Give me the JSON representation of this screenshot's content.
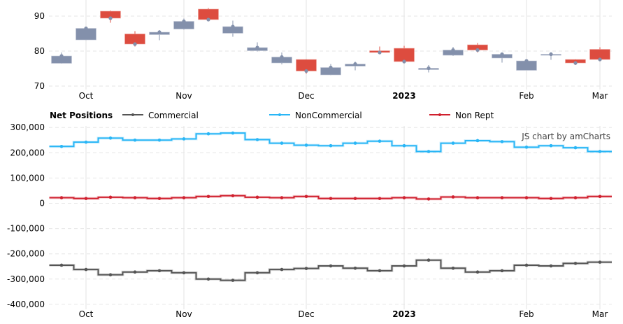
{
  "colors": {
    "up": "#8390ab",
    "down": "#dd4c3f",
    "commercial": "#555555",
    "noncommercial": "#29b6f6",
    "nonrept": "#d0202e"
  },
  "credit": "JS chart by amCharts",
  "chart_data": [
    {
      "type": "candlestick",
      "title": "",
      "ylim": [
        70,
        92
      ],
      "y_ticks": [
        "70",
        "80",
        "90"
      ],
      "y_tick_values": [
        70,
        80,
        90
      ],
      "x_labels": [
        {
          "label": "Oct",
          "week": 1,
          "bold": false
        },
        {
          "label": "Nov",
          "week": 5,
          "bold": false
        },
        {
          "label": "Dec",
          "week": 10,
          "bold": false
        },
        {
          "label": "2023",
          "week": 14,
          "bold": true
        },
        {
          "label": "Feb",
          "week": 19,
          "bold": false
        },
        {
          "label": "Mar",
          "week": 22,
          "bold": false
        }
      ],
      "ohlc": [
        [
          76.5,
          79.6,
          76.4,
          78.6
        ],
        [
          83.2,
          86.9,
          83.1,
          86.5
        ],
        [
          91.4,
          91.6,
          88.1,
          89.4
        ],
        [
          84.9,
          85.7,
          81.3,
          82.0
        ],
        [
          84.7,
          86.0,
          83.1,
          85.4
        ],
        [
          86.3,
          89.3,
          86.1,
          88.5
        ],
        [
          92.0,
          92.3,
          88.5,
          89.0
        ],
        [
          85.1,
          88.7,
          84.1,
          87.0
        ],
        [
          80.1,
          82.5,
          79.9,
          81.0
        ],
        [
          76.6,
          79.6,
          76.2,
          78.3
        ],
        [
          77.6,
          77.7,
          73.5,
          74.3
        ],
        [
          73.2,
          76.3,
          73.1,
          75.3
        ],
        [
          75.7,
          77.0,
          74.5,
          76.3
        ],
        [
          80.1,
          81.3,
          79.3,
          79.6
        ],
        [
          80.8,
          81.5,
          76.8,
          77.0
        ],
        [
          74.7,
          76.0,
          73.9,
          75.1
        ],
        [
          78.8,
          81.2,
          78.6,
          80.3
        ],
        [
          81.8,
          82.3,
          79.6,
          80.3
        ],
        [
          78.0,
          79.3,
          76.7,
          79.1
        ],
        [
          74.5,
          77.7,
          74.5,
          77.2
        ],
        [
          78.9,
          79.7,
          77.5,
          79.1
        ],
        [
          77.6,
          77.7,
          76.0,
          76.6
        ],
        [
          80.5,
          81.1,
          77.1,
          77.6
        ]
      ]
    },
    {
      "type": "line",
      "step": true,
      "title": "Net Positions",
      "ylim": [
        -400000,
        300000
      ],
      "y_ticks": [
        "-400,000",
        "-300,000",
        "-200,000",
        "-100,000",
        "0",
        "100,000",
        "200,000",
        "300,000"
      ],
      "y_tick_values": [
        -400000,
        -300000,
        -200000,
        -100000,
        0,
        100000,
        200000,
        300000
      ],
      "legend_position": "top",
      "series": [
        {
          "name": "Commercial",
          "key": "commercial",
          "values": [
            -245000,
            -262000,
            -283000,
            -272000,
            -267000,
            -275000,
            -300000,
            -305000,
            -275000,
            -262000,
            -258000,
            -248000,
            -257000,
            -267000,
            -248000,
            -225000,
            -257000,
            -272000,
            -267000,
            -245000,
            -248000,
            -238000,
            -233000
          ]
        },
        {
          "name": "NonCommercial",
          "key": "noncommercial",
          "values": [
            225000,
            242000,
            258000,
            250000,
            250000,
            255000,
            275000,
            278000,
            252000,
            238000,
            230000,
            228000,
            238000,
            246000,
            228000,
            205000,
            238000,
            248000,
            244000,
            222000,
            228000,
            220000,
            205000
          ]
        },
        {
          "name": "Non Rept",
          "key": "nonrept",
          "values": [
            22000,
            19000,
            24000,
            22000,
            19000,
            22000,
            27000,
            30000,
            24000,
            22000,
            27000,
            19000,
            19000,
            19000,
            22000,
            17000,
            25000,
            22000,
            22000,
            22000,
            19000,
            22000,
            27000
          ]
        }
      ]
    }
  ]
}
